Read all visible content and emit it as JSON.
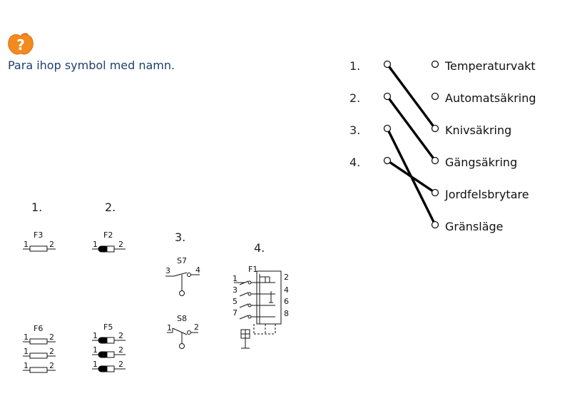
{
  "instruction": "Para ihop symbol med namn.",
  "icons": {
    "help": "help-apple-icon"
  },
  "left_numbers": [
    "1.",
    "2.",
    "3.",
    "4."
  ],
  "terms": [
    "Temperaturvakt",
    "Automatsäkring",
    "Knivsäkring",
    "Gängsäkring",
    "Jordfelsbrytare",
    "Gränsläge"
  ],
  "connections": [
    {
      "from": 1,
      "to": "Knivsäkring"
    },
    {
      "from": 2,
      "to": "Gängsäkring"
    },
    {
      "from": 3,
      "to": "Gränsläge"
    },
    {
      "from": 4,
      "to": "Jordfelsbrytare"
    }
  ],
  "symbol_numbers": [
    "1.",
    "2.",
    "3.",
    "4."
  ],
  "symbols": {
    "s1_top": {
      "label": "F3",
      "t1": "1",
      "t2": "2"
    },
    "s1_bottom": {
      "label": "F6",
      "t1": "1",
      "t2": "2"
    },
    "s2_top": {
      "label": "F2",
      "t1": "1",
      "t2": "2"
    },
    "s2_bottom": {
      "label": "F5",
      "t1": "1",
      "t2": "2"
    },
    "s3_top": {
      "label": "S7",
      "t1": "3",
      "t2": "4"
    },
    "s3_bottom": {
      "label": "S8",
      "t1": "1",
      "t2": "2"
    },
    "s4": {
      "label": "F1",
      "left_terms": [
        "1",
        "3",
        "5",
        "7"
      ],
      "right_terms": [
        "2",
        "4",
        "6",
        "8"
      ]
    }
  }
}
